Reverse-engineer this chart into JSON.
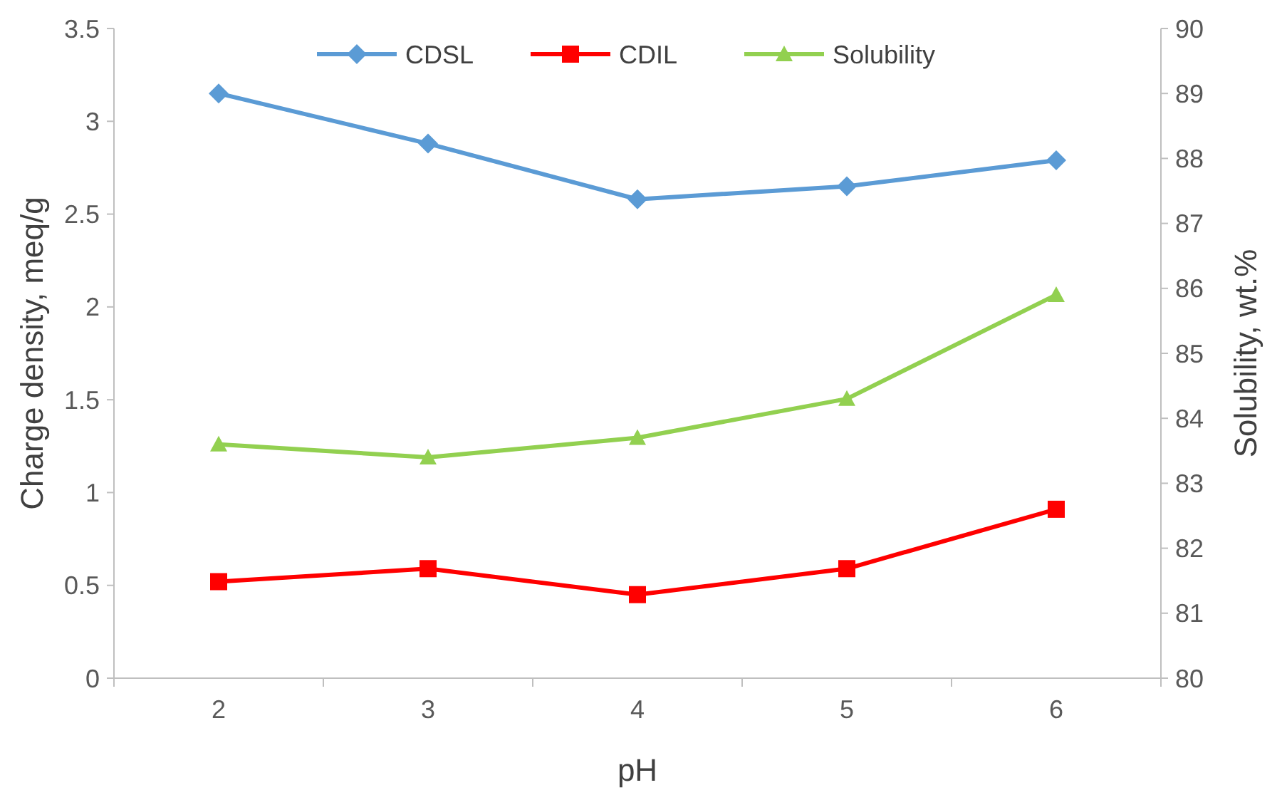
{
  "chart_data": {
    "type": "line",
    "xlabel": "pH",
    "ylabel": "Charge density, meq/g",
    "y2label": "Solubility, wt.%",
    "categories": [
      "2",
      "3",
      "4",
      "5",
      "6"
    ],
    "series": [
      {
        "name": "CDSL",
        "color": "#5b9bd5",
        "marker": "diamond",
        "values": [
          3.15,
          2.88,
          2.58,
          2.65,
          2.79
        ]
      },
      {
        "name": "CDIL",
        "color": "#ff0000",
        "marker": "square",
        "values": [
          0.52,
          0.59,
          0.45,
          0.59,
          0.91
        ]
      },
      {
        "name": "Solubility",
        "color": "#92d050",
        "marker": "triangle",
        "axis": "y2",
        "values": [
          83.6,
          83.4,
          83.7,
          84.3,
          85.9
        ]
      }
    ],
    "ylim": [
      0,
      3.5
    ],
    "yticks": [
      0,
      0.5,
      1,
      1.5,
      2,
      2.5,
      3,
      3.5
    ],
    "y2lim": [
      80,
      90
    ],
    "y2ticks": [
      80,
      81,
      82,
      83,
      84,
      85,
      86,
      87,
      88,
      89,
      90
    ],
    "legend": "top",
    "grid": false
  }
}
